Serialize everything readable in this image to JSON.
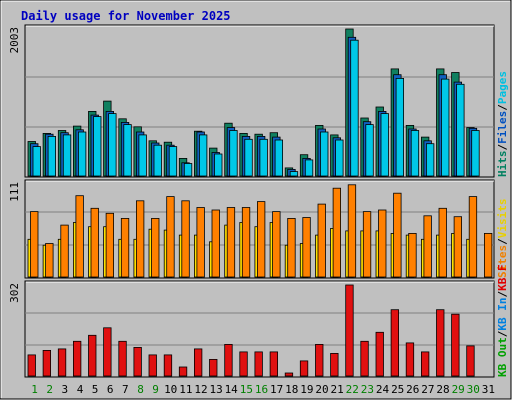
{
  "chart_data": [
    {
      "type": "bar",
      "panel": "hits-files-pages",
      "title": "Daily usage for November 2025",
      "ylabel_max": "2003",
      "right_labels": [
        {
          "text": "Pages",
          "color": "#00c0e0"
        },
        {
          "text": "/",
          "color": "#000000"
        },
        {
          "text": "Files",
          "color": "#0050c0"
        },
        {
          "text": "/",
          "color": "#000000"
        },
        {
          "text": "Hits",
          "color": "#008060"
        }
      ],
      "categories": [
        "1",
        "2",
        "3",
        "4",
        "5",
        "6",
        "7",
        "8",
        "9",
        "10",
        "11",
        "12",
        "13",
        "14",
        "15",
        "16",
        "17",
        "18",
        "19",
        "20",
        "21",
        "22",
        "23",
        "24",
        "25",
        "26",
        "27",
        "28",
        "29",
        "30",
        "31"
      ],
      "ylim": [
        0,
        2003
      ],
      "series": [
        {
          "name": "Hits",
          "color": "#108060",
          "values": [
            470,
            580,
            620,
            680,
            880,
            1020,
            780,
            670,
            480,
            460,
            240,
            610,
            380,
            720,
            580,
            570,
            590,
            110,
            290,
            690,
            560,
            2003,
            790,
            940,
            1460,
            690,
            530,
            1460,
            1410,
            660,
            0
          ]
        },
        {
          "name": "Files",
          "color": "#1060c0",
          "values": [
            440,
            570,
            590,
            630,
            830,
            880,
            730,
            600,
            450,
            420,
            180,
            600,
            320,
            660,
            540,
            540,
            530,
            90,
            240,
            640,
            520,
            1890,
            740,
            880,
            1380,
            640,
            480,
            1380,
            1280,
            650,
            0
          ]
        },
        {
          "name": "Pages",
          "color": "#00c8e8",
          "values": [
            400,
            540,
            560,
            600,
            810,
            850,
            700,
            560,
            420,
            400,
            170,
            560,
            300,
            620,
            500,
            500,
            490,
            60,
            220,
            600,
            490,
            1850,
            700,
            850,
            1330,
            620,
            440,
            1320,
            1250,
            620,
            0
          ]
        }
      ]
    },
    {
      "type": "bar",
      "panel": "visits-sites",
      "ylabel_max": "111",
      "right_labels": [
        {
          "text": "Visits",
          "color": "#e8d000"
        },
        {
          "text": "/",
          "color": "#000000"
        },
        {
          "text": "Sites",
          "color": "#f08000"
        }
      ],
      "categories": [
        "1",
        "2",
        "3",
        "4",
        "5",
        "6",
        "7",
        "8",
        "9",
        "10",
        "11",
        "12",
        "13",
        "14",
        "15",
        "16",
        "17",
        "18",
        "19",
        "20",
        "21",
        "22",
        "23",
        "24",
        "25",
        "26",
        "27",
        "28",
        "29",
        "30",
        "31"
      ],
      "ylim": [
        0,
        111
      ],
      "series": [
        {
          "name": "Visits",
          "color": "#ffe000",
          "values": [
            45,
            38,
            45,
            65,
            60,
            60,
            45,
            45,
            57,
            56,
            50,
            50,
            42,
            62,
            65,
            60,
            65,
            38,
            40,
            50,
            58,
            55,
            55,
            55,
            52,
            50,
            45,
            50,
            52,
            45,
            0
          ]
        },
        {
          "name": "Sites",
          "color": "#ff8000",
          "values": [
            78,
            40,
            62,
            97,
            82,
            76,
            70,
            91,
            70,
            96,
            91,
            83,
            80,
            83,
            83,
            90,
            78,
            70,
            71,
            87,
            106,
            110,
            78,
            80,
            100,
            52,
            73,
            82,
            72,
            96,
            52
          ]
        }
      ]
    },
    {
      "type": "bar",
      "panel": "kbytes",
      "ylabel_max": "302",
      "right_labels": [
        {
          "text": "KB F",
          "color": "#e00000"
        },
        {
          "text": "/",
          "color": "#000000"
        },
        {
          "text": "KB In",
          "color": "#0080e0"
        },
        {
          "text": "/",
          "color": "#000000"
        },
        {
          "text": "KB Out",
          "color": "#00a000"
        }
      ],
      "categories": [
        "1",
        "2",
        "3",
        "4",
        "5",
        "6",
        "7",
        "8",
        "9",
        "10",
        "11",
        "12",
        "13",
        "14",
        "15",
        "16",
        "17",
        "18",
        "19",
        "20",
        "21",
        "22",
        "23",
        "24",
        "25",
        "26",
        "27",
        "28",
        "29",
        "30",
        "31"
      ],
      "ylim": [
        0,
        302
      ],
      "series": [
        {
          "name": "KB F",
          "color": "#e01010",
          "values": [
            70,
            85,
            90,
            115,
            135,
            160,
            115,
            95,
            70,
            70,
            30,
            90,
            55,
            105,
            80,
            80,
            80,
            10,
            50,
            105,
            75,
            302,
            115,
            145,
            220,
            110,
            80,
            220,
            205,
            100,
            0
          ]
        }
      ]
    }
  ],
  "x_axis_labels": [
    {
      "text": "1",
      "color": "#008000"
    },
    {
      "text": "2",
      "color": "#008000"
    },
    {
      "text": "3",
      "color": "#000000"
    },
    {
      "text": "4",
      "color": "#000000"
    },
    {
      "text": "5",
      "color": "#000000"
    },
    {
      "text": "6",
      "color": "#000000"
    },
    {
      "text": "7",
      "color": "#000000"
    },
    {
      "text": "8",
      "color": "#008000"
    },
    {
      "text": "9",
      "color": "#008000"
    },
    {
      "text": "10",
      "color": "#000000"
    },
    {
      "text": "11",
      "color": "#000000"
    },
    {
      "text": "12",
      "color": "#000000"
    },
    {
      "text": "13",
      "color": "#000000"
    },
    {
      "text": "14",
      "color": "#000000"
    },
    {
      "text": "15",
      "color": "#008000"
    },
    {
      "text": "16",
      "color": "#008000"
    },
    {
      "text": "17",
      "color": "#000000"
    },
    {
      "text": "18",
      "color": "#000000"
    },
    {
      "text": "19",
      "color": "#000000"
    },
    {
      "text": "20",
      "color": "#000000"
    },
    {
      "text": "21",
      "color": "#000000"
    },
    {
      "text": "22",
      "color": "#008000"
    },
    {
      "text": "23",
      "color": "#008000"
    },
    {
      "text": "24",
      "color": "#000000"
    },
    {
      "text": "25",
      "color": "#000000"
    },
    {
      "text": "26",
      "color": "#000000"
    },
    {
      "text": "27",
      "color": "#000000"
    },
    {
      "text": "28",
      "color": "#000000"
    },
    {
      "text": "29",
      "color": "#008000"
    },
    {
      "text": "30",
      "color": "#008000"
    },
    {
      "text": "31",
      "color": "#000000"
    }
  ],
  "colors": {
    "background": "#c0c0c0",
    "title": "#0000c0",
    "gridline": "#808080"
  }
}
